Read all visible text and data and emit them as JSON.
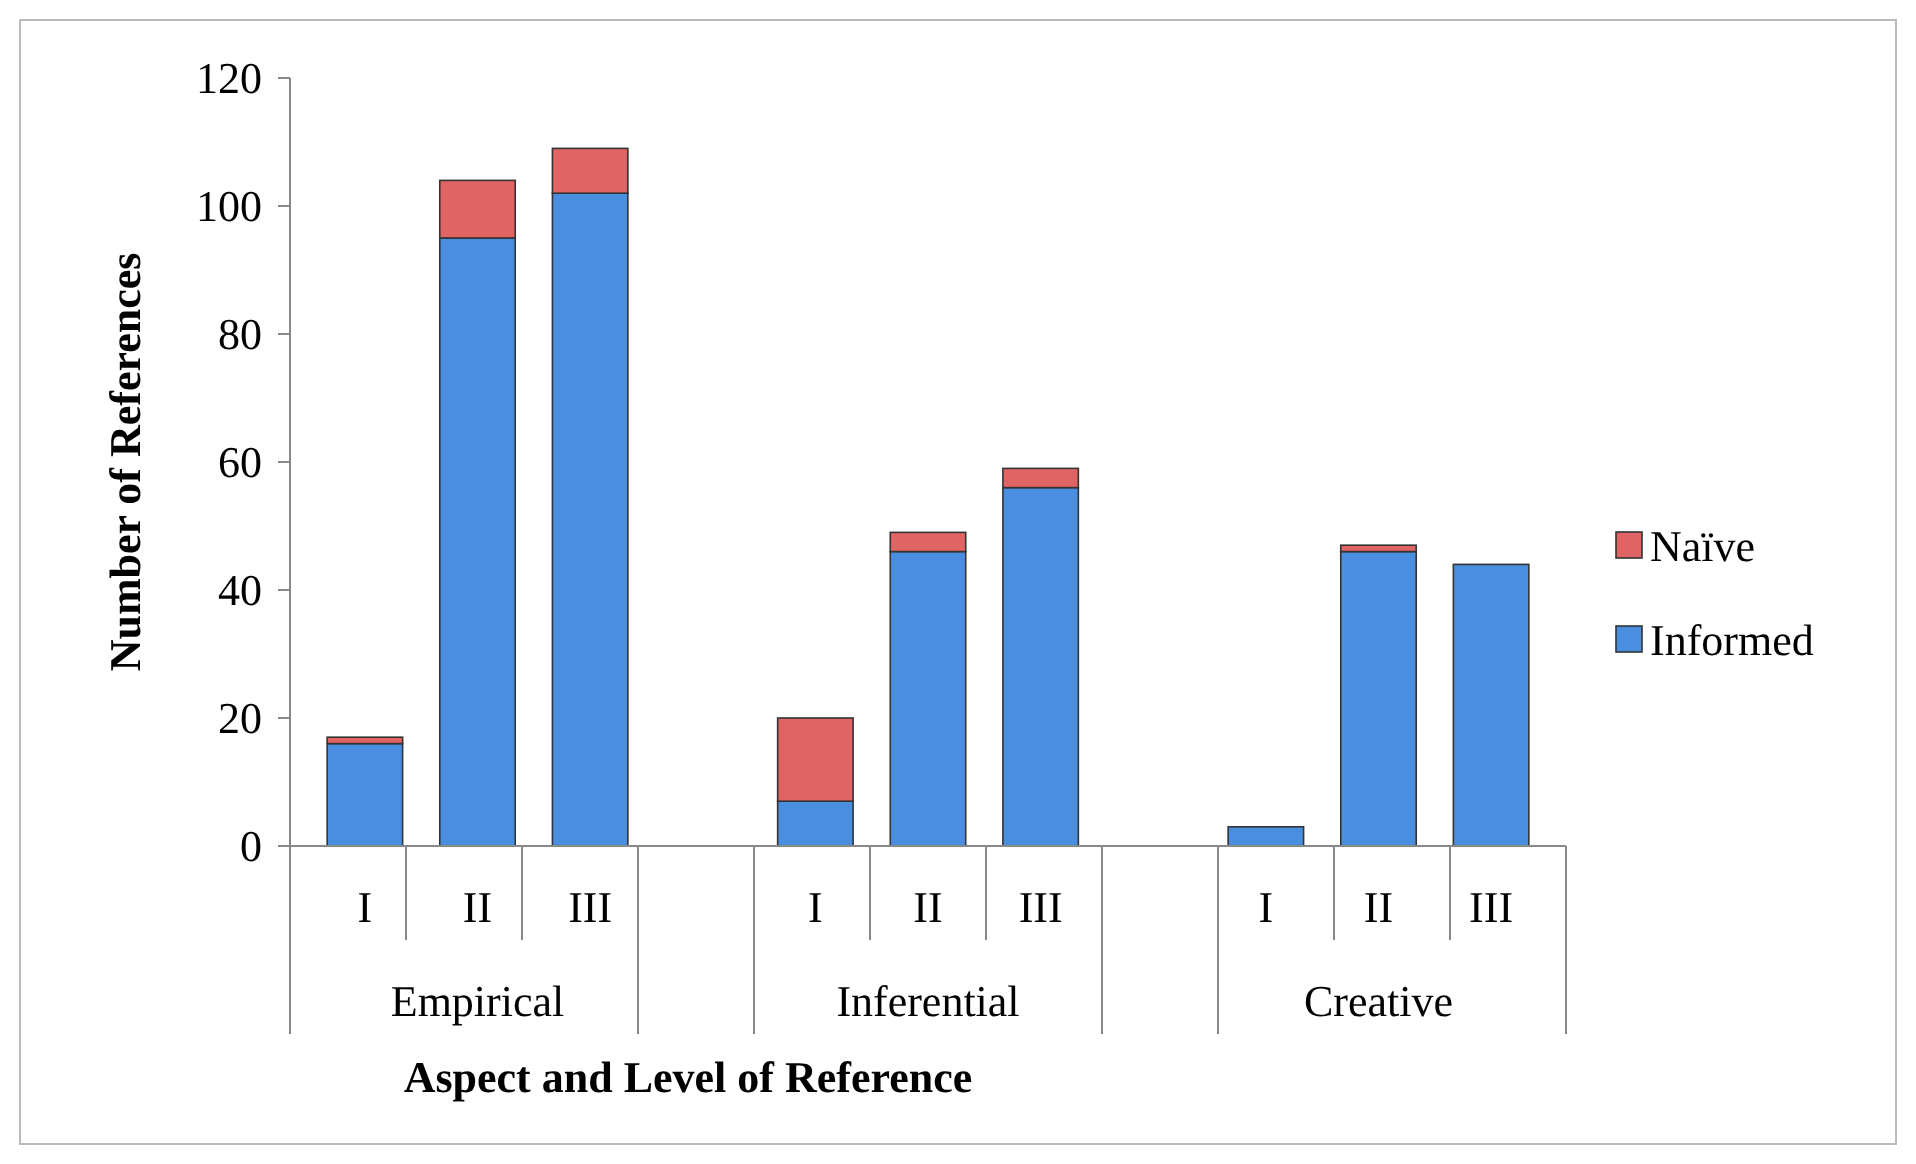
{
  "chart_data": {
    "type": "bar",
    "stacked": true,
    "ylabel": "Number of References",
    "xlabel": "Aspect and Level of Reference",
    "categories": [
      "I",
      "II",
      "III",
      null,
      "I",
      "II",
      "III",
      null,
      "I",
      "II",
      "III"
    ],
    "annotations": [
      "Empirical",
      "Inferential",
      "Creative"
    ],
    "series": [
      {
        "name": "Informed",
        "color": "#4a8ee0",
        "values": [
          16,
          95,
          102,
          null,
          7,
          46,
          56,
          null,
          3,
          46,
          44
        ]
      },
      {
        "name": "Naïve",
        "color": "#e06464",
        "values": [
          1,
          9,
          7,
          null,
          13,
          3,
          3,
          null,
          0,
          1,
          0
        ]
      }
    ],
    "ylim": [
      0,
      120
    ],
    "yticks": [
      0,
      20,
      40,
      60,
      80,
      100,
      120
    ],
    "grid": false,
    "legend": "right"
  }
}
